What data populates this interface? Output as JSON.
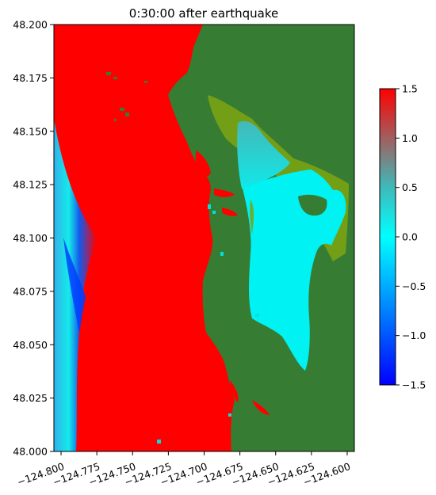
{
  "chart_data": {
    "type": "heatmap",
    "title": "0:30:00 after earthquake",
    "xlabel": "",
    "ylabel": "",
    "xlim": [
      -124.805,
      -124.595
    ],
    "ylim": [
      48.0,
      48.2
    ],
    "x_ticks": [
      -124.8,
      -124.775,
      -124.75,
      -124.725,
      -124.7,
      -124.675,
      -124.65,
      -124.625,
      -124.6
    ],
    "x_tick_labels": [
      "−124.800",
      "−124.775",
      "−124.750",
      "−124.725",
      "−124.700",
      "−124.675",
      "−124.650",
      "−124.625",
      "−124.600"
    ],
    "y_ticks": [
      48.0,
      48.025,
      48.05,
      48.075,
      48.1,
      48.125,
      48.15,
      48.175,
      48.2
    ],
    "y_tick_labels": [
      "48.000",
      "48.025",
      "48.050",
      "48.075",
      "48.100",
      "48.125",
      "48.150",
      "48.175",
      "48.200"
    ],
    "colorbar": {
      "min": -1.5,
      "max": 1.5,
      "ticks": [
        -1.5,
        -1.0,
        -0.5,
        0.0,
        0.5,
        1.0,
        1.5
      ],
      "tick_labels": [
        "−1.5",
        "−1.0",
        "−0.5",
        "0.0",
        "0.5",
        "1.0",
        "1.5"
      ],
      "colors": [
        "#0000ff",
        "#00ffff",
        "#ff0000"
      ]
    },
    "colors": {
      "land": "#367d33",
      "land_low": "#7aa314",
      "surface_high": "#ff0000",
      "surface_zero": "#00f0f0",
      "surface_low": "#0033ff"
    },
    "grid": false,
    "regions": [
      {
        "name": "open-ocean",
        "value": 1.5
      },
      {
        "name": "offshore-trough",
        "value": -0.6
      },
      {
        "name": "inlet-water",
        "value": 0.0
      },
      {
        "name": "upper-inlet",
        "value": 0.4
      },
      {
        "name": "land",
        "value": null
      }
    ]
  }
}
